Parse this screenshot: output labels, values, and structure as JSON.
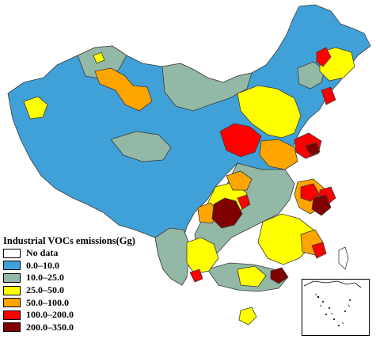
{
  "legend": {
    "title": "Industrial VOCs emissions(Gg)",
    "items": [
      {
        "label": "No data",
        "color": "#ffffff"
      },
      {
        "label": "0.0–10.0",
        "color": "#3fa1d8"
      },
      {
        "label": "10.0–25.0",
        "color": "#93b8a6"
      },
      {
        "label": "25.0–50.0",
        "color": "#ffff00"
      },
      {
        "label": "50.0–100.0",
        "color": "#ffa500"
      },
      {
        "label": "100.0–200.0",
        "color": "#ff0000"
      },
      {
        "label": "200.0–350.0",
        "color": "#800000"
      }
    ]
  },
  "colors": {
    "border": "#3a3a3a"
  }
}
